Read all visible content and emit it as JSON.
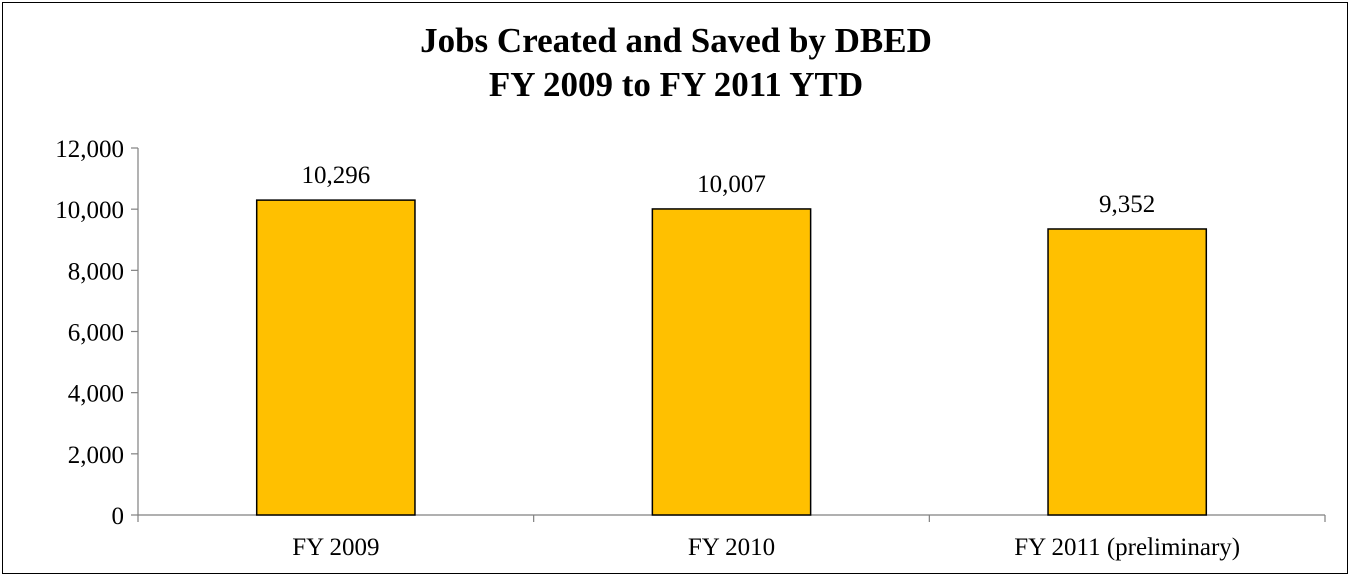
{
  "chart_data": {
    "type": "bar",
    "title": "Jobs Created and Saved by DBED",
    "subtitle": "FY 2009 to FY 2011 YTD",
    "categories": [
      "FY 2009",
      "FY 2010",
      "FY 2011 (preliminary)"
    ],
    "values": [
      10296,
      10007,
      9352
    ],
    "data_labels": [
      "10,296",
      "10,007",
      "9,352"
    ],
    "ylim": [
      0,
      12000
    ],
    "yticks": [
      0,
      2000,
      4000,
      6000,
      8000,
      10000,
      12000
    ],
    "ytick_labels": [
      "0",
      "2,000",
      "4,000",
      "6,000",
      "8,000",
      "10,000",
      "12,000"
    ],
    "xlabel": "",
    "ylabel": "",
    "grid": false,
    "legend": "none",
    "bar_color": "#FFC000"
  }
}
